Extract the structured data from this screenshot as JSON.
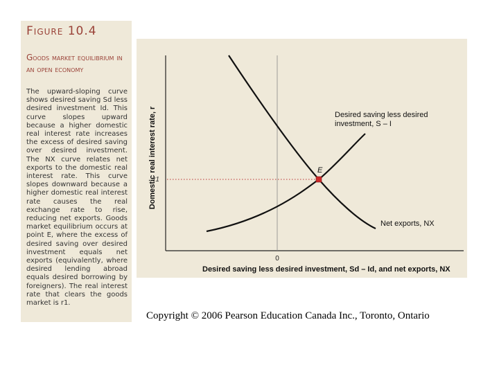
{
  "figure": {
    "number": "Figure 10.4",
    "title": "Goods market equilibrium in an open economy",
    "caption": "The upward-sloping curve shows desired saving Sd less desired investment Id. This curve slopes upward because a higher domestic real interest rate increases the excess of desired saving over desired investment. The NX curve relates net exports to the domestic real interest rate. This curve slopes downward because a higher domestic real interest rate causes the real exchange rate to rise, reducing net exports. Goods market equilibrium occurs at point E, where the excess of desired saving over desired investment equals net exports (equivalently, where desired lending abroad equals desired borrowing by foreigners). The real interest rate that clears the goods market is r1."
  },
  "chart_data": {
    "type": "line",
    "ylabel": "Domestic real interest rate, r",
    "xlabel": "Desired saving less desired investment, Sd – Id, and net exports, NX",
    "x_tick_labels": [
      "0"
    ],
    "y_tick_labels": [
      "r1"
    ],
    "series": [
      {
        "name": "Desired saving less desired investment, S – I",
        "shape": "upward-sloping"
      },
      {
        "name": "Net exports, NX",
        "shape": "downward-sloping"
      }
    ],
    "annotations": [
      {
        "label": "E",
        "meaning": "equilibrium point"
      }
    ],
    "colors": {
      "equilibrium_point": "#cc2a2a",
      "curves": "#111111",
      "panel": "#efe9d9",
      "heading": "#9a4238"
    }
  },
  "copyright": "Copyright © 2006 Pearson Education Canada Inc., Toronto, Ontario"
}
